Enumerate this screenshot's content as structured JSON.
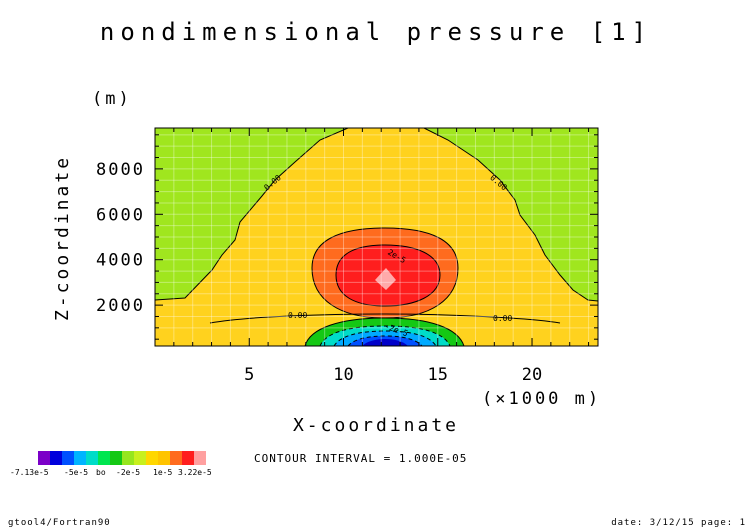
{
  "chart_data": {
    "type": "heatmap",
    "title": "nondimensional pressure [1]",
    "xlabel": "X-coordinate",
    "xunit": "(×1000 m)",
    "ylabel": "Z-coordinate",
    "yunit": "(m)",
    "xlim": [
      0,
      23.5
    ],
    "ylim": [
      200,
      9800
    ],
    "xticks": [
      5,
      10,
      15,
      20
    ],
    "yticks": [
      2000,
      4000,
      6000,
      8000
    ],
    "contour_interval_text": "CONTOUR INTERVAL = 1.000E-05",
    "contour_labels": [
      "0.00",
      "0.00",
      "0.00",
      "0.00",
      "2e-5",
      "-2e-5"
    ],
    "colorbar": {
      "labels": [
        "-7.13e-5",
        "-5e-5",
        "bo",
        "-2e-5",
        "1e-5",
        "3.22e-5"
      ],
      "colors": [
        "#7b00c8",
        "#0000dc",
        "#0050ff",
        "#00b4ff",
        "#00dcc8",
        "#00e650",
        "#14c814",
        "#96e61e",
        "#c8f01e",
        "#ffd700",
        "#ffc400",
        "#ff6b1e",
        "#ff1e1e",
        "#ffa0a0"
      ]
    },
    "field_colors": {
      "background": "#a0e61e",
      "outer_positive": "#ffd21e",
      "ring_2e5": "#ff6b1e",
      "core_3e5": "#ff1e1e",
      "peak": "#ffaaaa",
      "neg_1": "#14c814",
      "neg_2": "#00dcc8",
      "neg_3": "#00aaff",
      "neg_4": "#0050ff",
      "neg_5": "#0000c8"
    }
  },
  "footer": {
    "left": "gtool4/Fortran90",
    "right": "date: 3/12/15 page: 1"
  }
}
